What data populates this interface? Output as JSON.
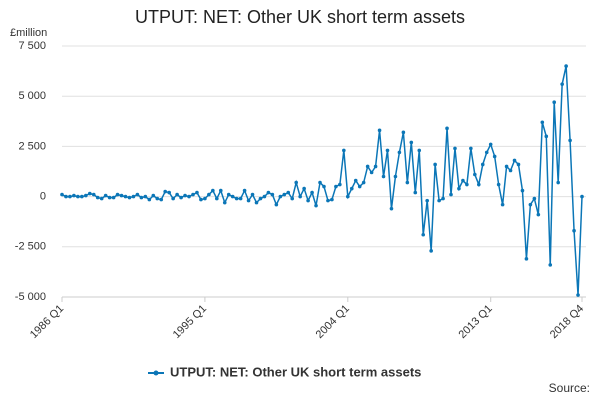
{
  "chart_data": {
    "type": "line",
    "title": "UTPUT: NET: Other UK short term assets",
    "ylabel": "£million",
    "source": "Source:",
    "categories": [
      "1986 Q1",
      null,
      null,
      null,
      null,
      null,
      null,
      null,
      null,
      null,
      null,
      null,
      null,
      null,
      null,
      null,
      null,
      null,
      null,
      null,
      null,
      null,
      null,
      null,
      null,
      null,
      null,
      null,
      null,
      null,
      null,
      null,
      null,
      null,
      null,
      null,
      "1995 Q1",
      null,
      null,
      null,
      null,
      null,
      null,
      null,
      null,
      null,
      null,
      null,
      null,
      null,
      null,
      null,
      null,
      null,
      null,
      null,
      null,
      null,
      null,
      null,
      null,
      null,
      null,
      null,
      null,
      null,
      null,
      null,
      null,
      null,
      null,
      null,
      "2004 Q1",
      null,
      null,
      null,
      null,
      null,
      null,
      null,
      null,
      null,
      null,
      null,
      null,
      null,
      null,
      null,
      null,
      null,
      null,
      null,
      null,
      null,
      null,
      null,
      null,
      null,
      null,
      null,
      null,
      null,
      null,
      null,
      null,
      null,
      null,
      null,
      "2013 Q1",
      null,
      null,
      null,
      null,
      null,
      null,
      null,
      null,
      null,
      null,
      null,
      null,
      null,
      null,
      null,
      null,
      null,
      null,
      null,
      null,
      null,
      null,
      "2018 Q4"
    ],
    "series": [
      {
        "name": "UTPUT: NET: Other UK short term assets",
        "color": "#0b76b7",
        "values": [
          100,
          0,
          0,
          50,
          0,
          0,
          50,
          150,
          100,
          -50,
          -100,
          50,
          -50,
          -50,
          100,
          50,
          0,
          -50,
          0,
          100,
          -50,
          0,
          -150,
          50,
          -100,
          -150,
          250,
          200,
          -100,
          100,
          -50,
          50,
          0,
          100,
          200,
          -150,
          -100,
          100,
          300,
          -100,
          300,
          -300,
          100,
          0,
          -100,
          -100,
          300,
          -200,
          100,
          -300,
          -100,
          0,
          200,
          100,
          -400,
          0,
          100,
          200,
          -100,
          700,
          0,
          400,
          -200,
          200,
          -450,
          700,
          500,
          -200,
          -150,
          500,
          600,
          2300,
          0,
          400,
          800,
          500,
          700,
          1500,
          1200,
          1500,
          3300,
          1000,
          2300,
          -600,
          1000,
          2200,
          3200,
          700,
          2700,
          200,
          2300,
          -1900,
          -200,
          -2700,
          1600,
          -200,
          -100,
          3400,
          100,
          2400,
          400,
          800,
          600,
          2400,
          1100,
          600,
          1600,
          2200,
          2600,
          2000,
          600,
          -400,
          1500,
          1300,
          1800,
          1600,
          300,
          -3100,
          -400,
          -100,
          -900,
          3700,
          3000,
          -3400,
          4700,
          700,
          5600,
          6500,
          2800,
          -1700,
          -4900,
          0
        ]
      }
    ],
    "ylim": [
      -5000,
      7500
    ],
    "yticks": [
      {
        "value": -5000,
        "label": "-5 000"
      },
      {
        "value": -2500,
        "label": "-2 500"
      },
      0,
      {
        "value": 2500,
        "label": "2 500"
      },
      {
        "value": 5000,
        "label": "5 000"
      },
      {
        "value": 7500,
        "label": "7 500"
      }
    ],
    "grid": true,
    "legend": "bottom"
  }
}
